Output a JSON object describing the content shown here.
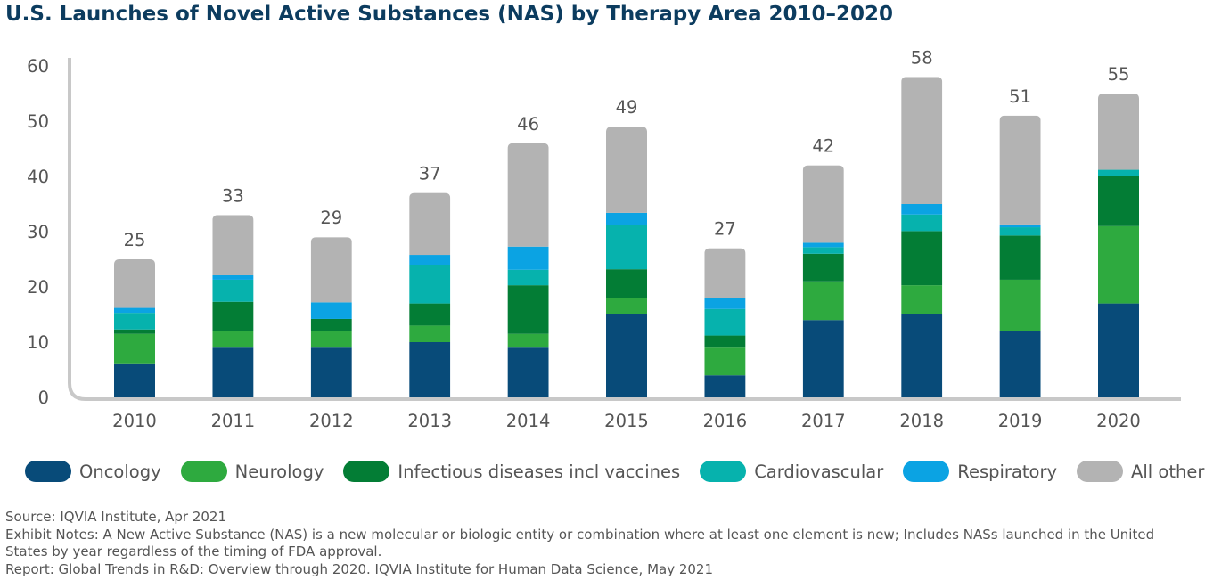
{
  "chart_data": {
    "type": "bar",
    "stacked": true,
    "title": "U.S. Launches of Novel Active Substances (NAS) by Therapy Area 2010–2020",
    "xlabel": "",
    "ylabel": "",
    "ylim": [
      0,
      60
    ],
    "yticks": [
      0,
      10,
      20,
      30,
      40,
      50,
      60
    ],
    "grid": false,
    "legend_position": "bottom",
    "categories": [
      "2010",
      "2011",
      "2012",
      "2013",
      "2014",
      "2015",
      "2016",
      "2017",
      "2018",
      "2019",
      "2020"
    ],
    "totals": [
      25,
      33,
      29,
      37,
      46,
      49,
      27,
      42,
      58,
      51,
      55
    ],
    "series": [
      {
        "name": "Oncology",
        "color": "#084b79",
        "values": [
          6,
          9,
          9,
          10,
          9,
          15,
          4,
          14,
          15,
          12,
          17
        ]
      },
      {
        "name": "Neurology",
        "color": "#2eaa3f",
        "values": [
          5.5,
          3,
          3,
          3,
          2.5,
          3,
          5,
          7,
          5.3,
          9.3,
          14
        ]
      },
      {
        "name": "Infectious diseases incl vaccines",
        "color": "#037d35",
        "values": [
          0.8,
          5.3,
          2.2,
          4,
          8.8,
          5.2,
          2.2,
          5,
          9.8,
          8,
          9
        ]
      },
      {
        "name": "Cardiovascular",
        "color": "#06b2ad",
        "values": [
          3,
          4,
          0,
          7,
          2.8,
          8,
          4.8,
          1.2,
          3,
          1.5,
          1.2
        ]
      },
      {
        "name": "Respiratory",
        "color": "#0ba3e3",
        "values": [
          0.9,
          0.8,
          3,
          1.8,
          4.2,
          2.2,
          2,
          0.8,
          1.9,
          0.5,
          0
        ]
      },
      {
        "name": "All others",
        "color": "#b3b3b3",
        "values": [
          8.8,
          10.9,
          11.8,
          11.2,
          18.7,
          15.6,
          9,
          14,
          23,
          19.7,
          13.8
        ]
      }
    ]
  },
  "notes": {
    "source": "Source: IQVIA Institute, Apr 2021",
    "exhibit_notes": "Exhibit Notes: A New Active Substance (NAS) is a new molecular or biologic entity or combination where at least one element is new; Includes NASs launched in the United States by year regardless of the timing of FDA approval.",
    "report": "Report: Global Trends in R&D: Overview through 2020. IQVIA Institute for Human Data Science, May 2021"
  }
}
